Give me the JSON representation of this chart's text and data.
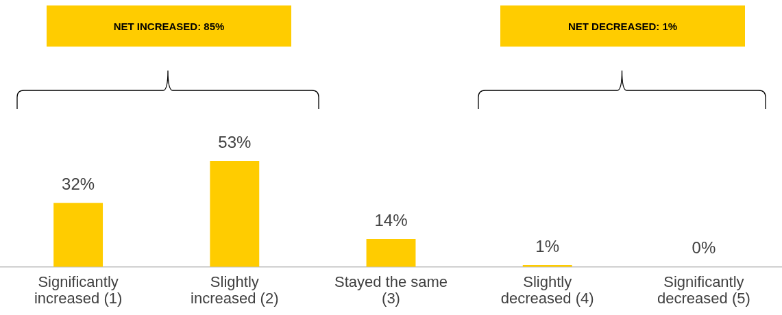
{
  "chart_data": {
    "type": "bar",
    "categories": [
      "Significantly increased (1)",
      "Slightly increased (2)",
      "Stayed the same (3)",
      "Slightly decreased (4)",
      "Significantly decreased (5)"
    ],
    "values": [
      32,
      53,
      14,
      1,
      0
    ],
    "color": "#ffcc00",
    "tick_labels": "x",
    "value_labels": [
      "32%",
      "53%",
      "14%",
      "1%",
      "0%"
    ],
    "grid": false,
    "legend": false,
    "annotations": [
      "NET INCREASED: 85%",
      "NET DECREASED: 1%"
    ]
  }
}
